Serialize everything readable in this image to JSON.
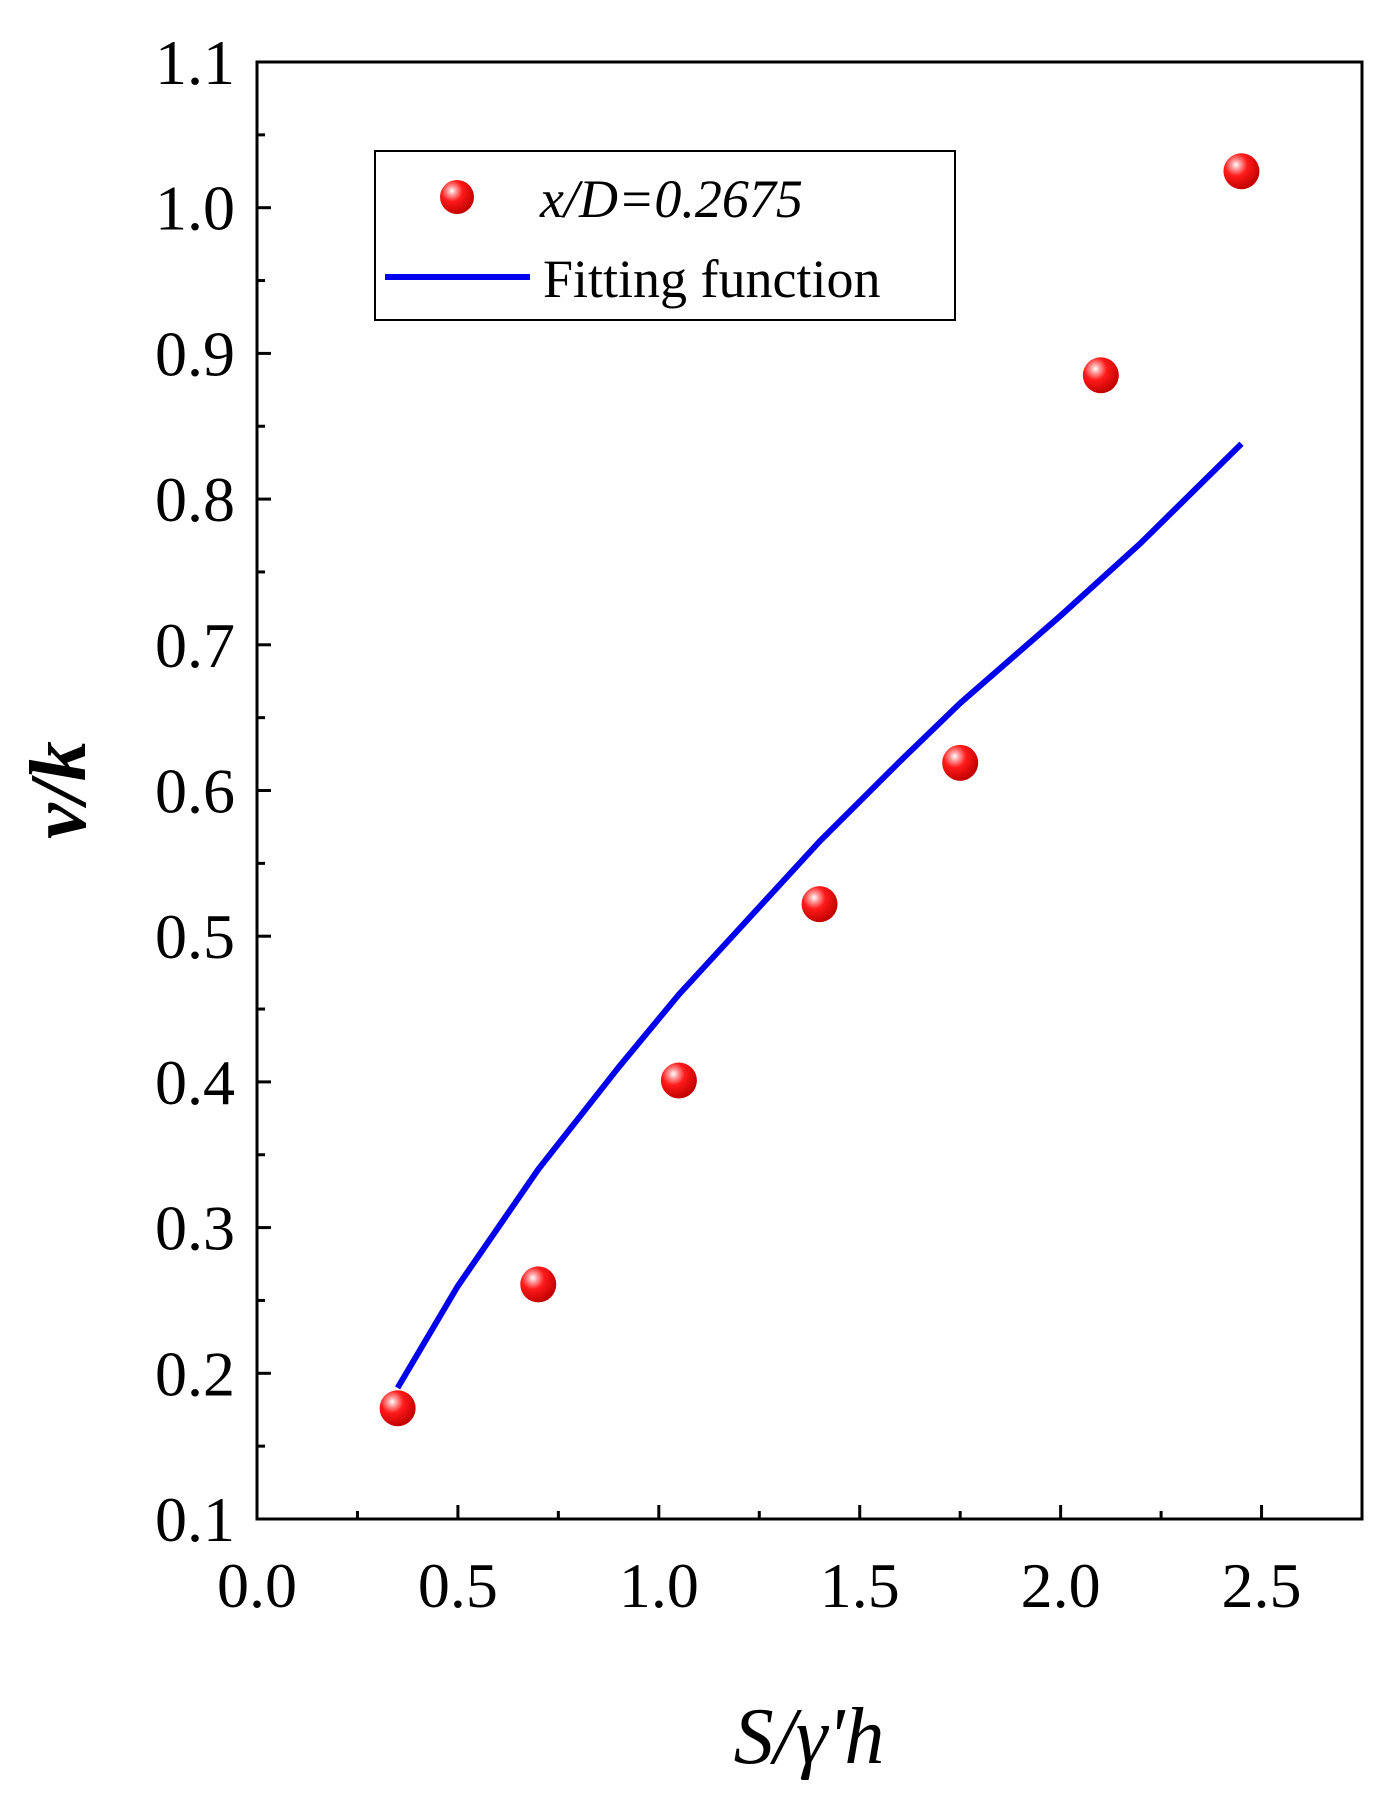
{
  "chart_data": {
    "type": "scatter",
    "xlabel": "S/γ'h",
    "ylabel": "v/k",
    "xlim": [
      0.0,
      2.75
    ],
    "ylim": [
      0.1,
      1.1
    ],
    "xticks": [
      0.0,
      0.5,
      1.0,
      1.5,
      2.0,
      2.5
    ],
    "xtick_labels": [
      "0.0",
      "0.5",
      "1.0",
      "1.5",
      "2.0",
      "2.5"
    ],
    "yticks": [
      0.1,
      0.2,
      0.3,
      0.4,
      0.5,
      0.6,
      0.7,
      0.8,
      0.9,
      1.0,
      1.1
    ],
    "ytick_labels": [
      "0.1",
      "0.2",
      "0.3",
      "0.4",
      "0.5",
      "0.6",
      "0.7",
      "0.8",
      "0.9",
      "1.0",
      "1.1"
    ],
    "grid": false,
    "legend_position": "top-left",
    "series": [
      {
        "name": "x/D=0.2675",
        "kind": "scatter",
        "color": "#ee0000",
        "x": [
          0.35,
          0.7,
          1.05,
          1.4,
          1.75,
          2.1,
          2.45
        ],
        "y": [
          0.176,
          0.261,
          0.401,
          0.522,
          0.619,
          0.885,
          1.025
        ]
      },
      {
        "name": "Fitting function",
        "kind": "line",
        "color": "#0000ee",
        "x": [
          0.35,
          0.5,
          0.7,
          0.9,
          1.05,
          1.2,
          1.4,
          1.6,
          1.75,
          2.0,
          2.2,
          2.45
        ],
        "y": [
          0.19,
          0.26,
          0.34,
          0.41,
          0.46,
          0.505,
          0.565,
          0.62,
          0.66,
          0.72,
          0.77,
          0.838
        ]
      }
    ]
  }
}
